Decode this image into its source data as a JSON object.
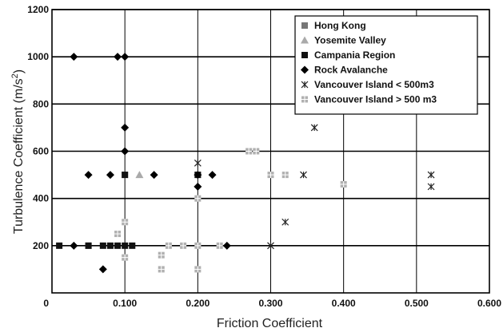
{
  "chart_data": {
    "type": "scatter",
    "xlabel": "Friction Coefficient",
    "ylabel_main": "Turbulence Coefficient (m/s",
    "ylabel_sup": "2",
    "ylabel_end": ")",
    "xlim": [
      0,
      0.6
    ],
    "ylim": [
      0,
      1200
    ],
    "x_ticks": [
      {
        "value": 0.1,
        "label": "0.100"
      },
      {
        "value": 0.2,
        "label": "0.200"
      },
      {
        "value": 0.3,
        "label": "0.300"
      },
      {
        "value": 0.4,
        "label": "0.400"
      },
      {
        "value": 0.5,
        "label": "0.500"
      },
      {
        "value": 0.6,
        "label": "0.600"
      }
    ],
    "y_ticks": [
      {
        "value": 200,
        "label": "200"
      },
      {
        "value": 400,
        "label": "400"
      },
      {
        "value": 600,
        "label": "600"
      },
      {
        "value": 800,
        "label": "800"
      },
      {
        "value": 1000,
        "label": "1000"
      },
      {
        "value": 1200,
        "label": "1200"
      }
    ],
    "origin_label": "0",
    "grid": true,
    "legend_position": "top-right",
    "series": [
      {
        "name": "Hong Kong",
        "marker": "square",
        "color": "#777777",
        "points": [
          [
            0.05,
            200
          ],
          [
            0.1,
            500
          ],
          [
            0.2,
            500
          ]
        ]
      },
      {
        "name": "Yosemite Valley",
        "marker": "triangle",
        "color": "#aaaaaa",
        "points": [
          [
            0.12,
            500
          ]
        ]
      },
      {
        "name": "Campania Region",
        "marker": "square",
        "color": "#111111",
        "points": [
          [
            0.01,
            200
          ],
          [
            0.05,
            200
          ],
          [
            0.07,
            200
          ],
          [
            0.08,
            200
          ],
          [
            0.09,
            200
          ],
          [
            0.1,
            200
          ],
          [
            0.11,
            200
          ],
          [
            0.1,
            500
          ],
          [
            0.2,
            500
          ]
        ]
      },
      {
        "name": "Rock Avalanche",
        "marker": "diamond",
        "color": "#000000",
        "points": [
          [
            0.03,
            1000
          ],
          [
            0.09,
            1000
          ],
          [
            0.1,
            1000
          ],
          [
            0.1,
            700
          ],
          [
            0.1,
            600
          ],
          [
            0.05,
            500
          ],
          [
            0.08,
            500
          ],
          [
            0.14,
            500
          ],
          [
            0.2,
            500
          ],
          [
            0.22,
            500
          ],
          [
            0.2,
            450
          ],
          [
            0.03,
            200
          ],
          [
            0.24,
            200
          ],
          [
            0.07,
            100
          ]
        ]
      },
      {
        "name": "Vancouver Island < 500m3",
        "marker": "asterisk",
        "color": "#222222",
        "points": [
          [
            0.2,
            550
          ],
          [
            0.3,
            200
          ],
          [
            0.32,
            300
          ],
          [
            0.345,
            500
          ],
          [
            0.36,
            700
          ],
          [
            0.52,
            500
          ],
          [
            0.52,
            450
          ]
        ]
      },
      {
        "name": "Vancouver Island > 500 m3",
        "marker": "plus-square",
        "color": "#b0b0b0",
        "points": [
          [
            0.09,
            250
          ],
          [
            0.1,
            300
          ],
          [
            0.1,
            150
          ],
          [
            0.15,
            160
          ],
          [
            0.15,
            100
          ],
          [
            0.16,
            200
          ],
          [
            0.18,
            200
          ],
          [
            0.2,
            200
          ],
          [
            0.2,
            400
          ],
          [
            0.2,
            100
          ],
          [
            0.23,
            200
          ],
          [
            0.27,
            600
          ],
          [
            0.28,
            600
          ],
          [
            0.3,
            500
          ],
          [
            0.32,
            500
          ],
          [
            0.4,
            460
          ]
        ]
      }
    ]
  }
}
